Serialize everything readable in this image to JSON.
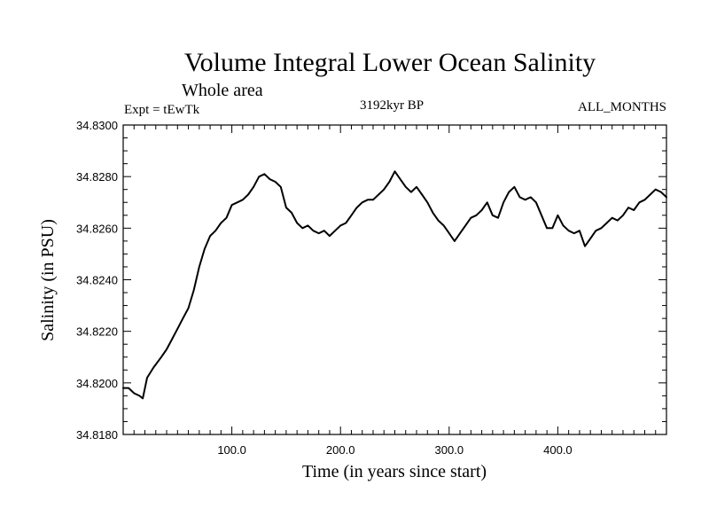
{
  "chart_data": {
    "type": "line",
    "title": "Volume Integral Lower Ocean Salinity",
    "subtitle": "Whole area",
    "left_label": "Expt = tEwTk",
    "center_label": "3192kyr BP",
    "right_label": "ALL_MONTHS",
    "xlabel": "Time (in years since start)",
    "ylabel": "Salinity (in PSU)",
    "xlim": [
      0,
      500
    ],
    "ylim": [
      34.818,
      34.83
    ],
    "x_ticks": [
      100,
      200,
      300,
      400
    ],
    "x_tick_labels": [
      "100.0",
      "200.0",
      "300.0",
      "400.0"
    ],
    "y_ticks": [
      34.818,
      34.82,
      34.822,
      34.824,
      34.826,
      34.828,
      34.83
    ],
    "y_tick_labels": [
      "34.8180",
      "34.8200",
      "34.8220",
      "34.8240",
      "34.8260",
      "34.8280",
      "34.8300"
    ],
    "grid": false,
    "series": [
      {
        "name": "salinity",
        "color": "#000000",
        "x": [
          0,
          5,
          10,
          15,
          18,
          22,
          28,
          35,
          40,
          45,
          50,
          55,
          60,
          65,
          70,
          75,
          80,
          85,
          90,
          95,
          100,
          105,
          110,
          115,
          120,
          125,
          130,
          135,
          140,
          145,
          150,
          155,
          160,
          165,
          170,
          175,
          180,
          185,
          190,
          195,
          200,
          205,
          210,
          215,
          220,
          225,
          230,
          235,
          240,
          245,
          250,
          255,
          260,
          265,
          270,
          275,
          280,
          285,
          290,
          295,
          300,
          305,
          310,
          315,
          320,
          325,
          330,
          335,
          340,
          345,
          350,
          355,
          360,
          365,
          370,
          375,
          380,
          385,
          390,
          395,
          400,
          405,
          410,
          415,
          420,
          425,
          430,
          435,
          440,
          445,
          450,
          455,
          460,
          465,
          470,
          475,
          480,
          485,
          490,
          495,
          500
        ],
        "y": [
          34.8198,
          34.8198,
          34.8196,
          34.8195,
          34.8194,
          34.8202,
          34.8206,
          34.821,
          34.8213,
          34.8217,
          34.8221,
          34.8225,
          34.8229,
          34.8236,
          34.8245,
          34.8252,
          34.8257,
          34.8259,
          34.8262,
          34.8264,
          34.8269,
          34.827,
          34.8271,
          34.8273,
          34.8276,
          34.828,
          34.8281,
          34.8279,
          34.8278,
          34.8276,
          34.8268,
          34.8266,
          34.8262,
          34.826,
          34.8261,
          34.8259,
          34.8258,
          34.8259,
          34.8257,
          34.8259,
          34.8261,
          34.8262,
          34.8265,
          34.8268,
          34.827,
          34.8271,
          34.8271,
          34.8273,
          34.8275,
          34.8278,
          34.8282,
          34.8279,
          34.8276,
          34.8274,
          34.8276,
          34.8273,
          34.827,
          34.8266,
          34.8263,
          34.8261,
          34.8258,
          34.8255,
          34.8258,
          34.8261,
          34.8264,
          34.8265,
          34.8267,
          34.827,
          34.8265,
          34.8264,
          34.827,
          34.8274,
          34.8276,
          34.8272,
          34.8271,
          34.8272,
          34.827,
          34.8265,
          34.826,
          34.826,
          34.8265,
          34.8261,
          34.8259,
          34.8258,
          34.8259,
          34.8253,
          34.8256,
          34.8259,
          34.826,
          34.8262,
          34.8264,
          34.8263,
          34.8265,
          34.8268,
          34.8267,
          34.827,
          34.8271,
          34.8273,
          34.8275,
          34.8274,
          34.8272
        ]
      }
    ]
  }
}
